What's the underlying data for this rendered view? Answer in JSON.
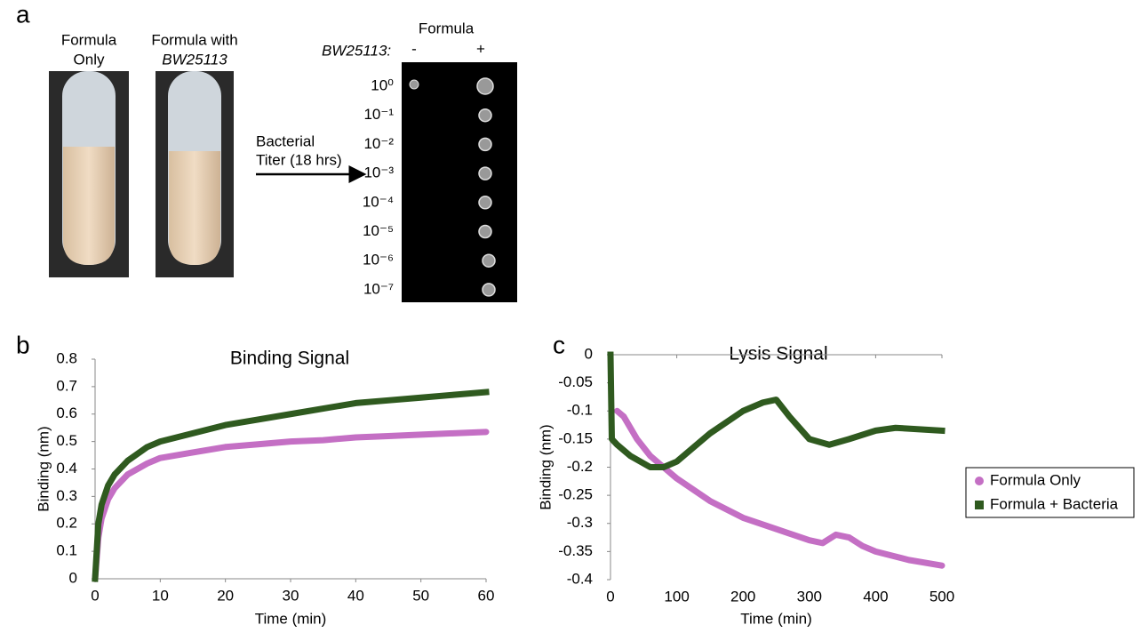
{
  "panel_a": {
    "panel": "a",
    "tube_labels": [
      [
        "Formula",
        "Only"
      ],
      [
        "Formula with",
        "BW25113"
      ]
    ],
    "arrow_label": [
      "Bacterial",
      "Titer (18 hrs)"
    ],
    "plate_title": "Formula",
    "strain_label": "BW25113:",
    "columns": [
      "-",
      "+"
    ],
    "dilutions": [
      "10⁰",
      "10⁻¹",
      "10⁻²",
      "10⁻³",
      "10⁻⁴",
      "10⁻⁵",
      "10⁻⁶",
      "10⁻⁷"
    ]
  },
  "chart_data": [
    {
      "type": "line",
      "panel": "b",
      "title": "Binding Signal",
      "x_label": "Time (min)",
      "y_label": "Binding (nm)",
      "xlim": [
        0,
        60
      ],
      "xticks": [
        0,
        10,
        20,
        30,
        40,
        50,
        60
      ],
      "ylim": [
        0,
        0.8
      ],
      "yticks": [
        0,
        0.1,
        0.2,
        0.3,
        0.4,
        0.5,
        0.6,
        0.7,
        0.8
      ],
      "grid": false,
      "series": [
        {
          "color": "#c46fc4",
          "marker": "circle",
          "x": [
            0,
            0.5,
            1,
            2,
            3,
            5,
            8,
            10,
            15,
            20,
            25,
            30,
            35,
            40,
            45,
            50,
            55,
            60
          ],
          "values": [
            0,
            0.15,
            0.22,
            0.29,
            0.33,
            0.38,
            0.42,
            0.44,
            0.46,
            0.48,
            0.49,
            0.5,
            0.505,
            0.515,
            0.52,
            0.525,
            0.53,
            0.535
          ]
        },
        {
          "color": "#2f5a1f",
          "marker": "square",
          "x": [
            0,
            0.5,
            1,
            2,
            3,
            5,
            8,
            10,
            15,
            20,
            25,
            30,
            35,
            40,
            45,
            50,
            55,
            60
          ],
          "values": [
            0,
            0.2,
            0.27,
            0.34,
            0.38,
            0.43,
            0.48,
            0.5,
            0.53,
            0.56,
            0.58,
            0.6,
            0.62,
            0.64,
            0.65,
            0.66,
            0.67,
            0.68
          ]
        }
      ]
    },
    {
      "type": "line",
      "panel": "c",
      "title": "Lysis Signal",
      "x_label": "Time (min)",
      "y_label": "Binding (nm)",
      "xlim": [
        0,
        500
      ],
      "xticks": [
        0,
        100,
        200,
        300,
        400,
        500
      ],
      "ylim": [
        -0.4,
        0
      ],
      "yticks": [
        0,
        -0.05,
        -0.1,
        -0.15,
        -0.2,
        -0.25,
        -0.3,
        -0.35,
        -0.4
      ],
      "grid": false,
      "legend": "right",
      "series": [
        {
          "name": "Formula Only",
          "color": "#c46fc4",
          "marker": "circle",
          "x": [
            10,
            20,
            40,
            60,
            80,
            100,
            150,
            200,
            250,
            300,
            320,
            340,
            360,
            380,
            400,
            450,
            500
          ],
          "values": [
            -0.1,
            -0.11,
            -0.15,
            -0.18,
            -0.2,
            -0.22,
            -0.26,
            -0.29,
            -0.31,
            -0.33,
            -0.335,
            -0.32,
            -0.325,
            -0.34,
            -0.35,
            -0.365,
            -0.375
          ]
        },
        {
          "name": "Formula + Bacteria",
          "color": "#2f5a1f",
          "marker": "square",
          "x": [
            0,
            2,
            10,
            30,
            60,
            80,
            100,
            150,
            200,
            230,
            250,
            270,
            300,
            330,
            360,
            400,
            430,
            500
          ],
          "values": [
            0,
            -0.15,
            -0.16,
            -0.18,
            -0.2,
            -0.2,
            -0.19,
            -0.14,
            -0.1,
            -0.085,
            -0.08,
            -0.11,
            -0.15,
            -0.16,
            -0.15,
            -0.135,
            -0.13,
            -0.135
          ]
        }
      ]
    }
  ]
}
